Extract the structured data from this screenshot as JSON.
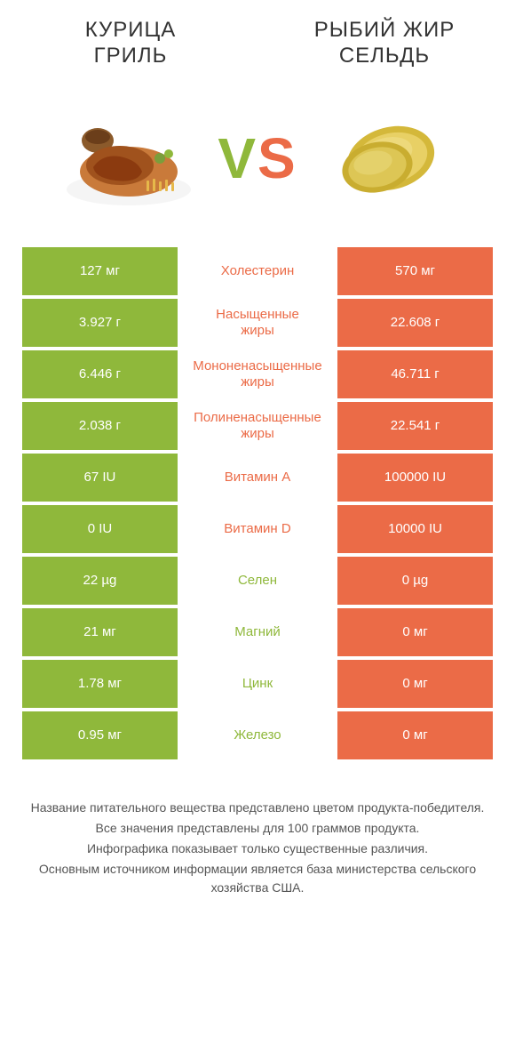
{
  "titles": {
    "left": "КУРИЦА\nГРИЛЬ",
    "right": "РЫБИЙ ЖИР\nСЕЛЬДЬ"
  },
  "vs": {
    "v": "V",
    "s": "S"
  },
  "colors": {
    "green": "#8fb83b",
    "orange": "#eb6b47",
    "white": "#ffffff",
    "text": "#333333",
    "footer": "#555555"
  },
  "rows": [
    {
      "left": "127 мг",
      "label": "Холестерин",
      "right": "570 мг",
      "winner": "right"
    },
    {
      "left": "3.927 г",
      "label": "Насыщенные\nжиры",
      "right": "22.608 г",
      "winner": "right"
    },
    {
      "left": "6.446 г",
      "label": "Мононенасыщенные\nжиры",
      "right": "46.711 г",
      "winner": "right"
    },
    {
      "left": "2.038 г",
      "label": "Полиненасыщенные\nжиры",
      "right": "22.541 г",
      "winner": "right"
    },
    {
      "left": "67 IU",
      "label": "Витамин A",
      "right": "100000 IU",
      "winner": "right"
    },
    {
      "left": "0 IU",
      "label": "Витамин D",
      "right": "10000 IU",
      "winner": "right"
    },
    {
      "left": "22 µg",
      "label": "Селен",
      "right": "0 µg",
      "winner": "left"
    },
    {
      "left": "21 мг",
      "label": "Магний",
      "right": "0 мг",
      "winner": "left"
    },
    {
      "left": "1.78 мг",
      "label": "Цинк",
      "right": "0 мг",
      "winner": "left"
    },
    {
      "left": "0.95 мг",
      "label": "Железо",
      "right": "0 мг",
      "winner": "left"
    }
  ],
  "footer": [
    "Название питательного вещества представлено цветом продукта-победителя.",
    "Все значения представлены для 100 граммов продукта.",
    "Инфографика показывает только существенные различия.",
    "Основным источником информации является база министерства сельского хозяйства США."
  ]
}
